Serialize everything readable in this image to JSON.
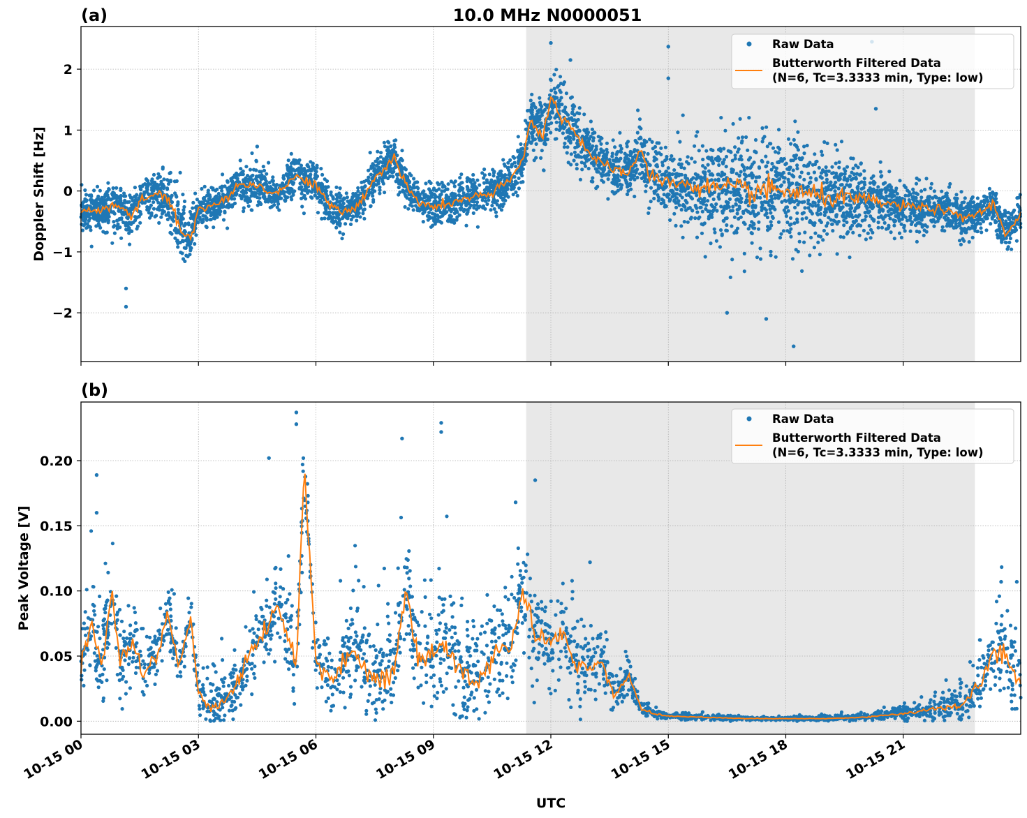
{
  "figure": {
    "title": "10.0 MHz N0000051",
    "xlabel": "UTC",
    "colors": {
      "raw": "#1f77b4",
      "filtered": "#ff7f0e",
      "shade": "#e8e8e8",
      "grid": "#b0b0b0"
    }
  },
  "chart_data": [
    {
      "type": "scatter",
      "panel_label": "(a)",
      "title": "10.0 MHz N0000051",
      "xlabel": "",
      "ylabel": "Doppler Shift [Hz]",
      "xlim_hours": [
        0,
        24
      ],
      "ylim": [
        -2.8,
        2.7
      ],
      "yticks": [
        -2,
        -1,
        0,
        1,
        2
      ],
      "ytick_labels": [
        "−2",
        "−1",
        "0",
        "1",
        "2"
      ],
      "grid": true,
      "legend_position": "top-right",
      "legend": [
        "Raw Data",
        "Butterworth Filtered Data\n(N=6, Tc=3.3333 min, Type: low)"
      ],
      "legend_lines": [
        "Raw Data",
        "Butterworth Filtered Data",
        "(N=6, Tc=3.3333 min, Type: low)"
      ],
      "shaded_region_hours": [
        11.37,
        22.83
      ],
      "series": [
        {
          "name": "Butterworth Filtered Data",
          "kind": "line",
          "x_hours": [
            0,
            0.5,
            1,
            1.3,
            1.6,
            2,
            2.3,
            2.6,
            2.8,
            3,
            3.3,
            3.6,
            4,
            4.5,
            5,
            5.5,
            6,
            6.3,
            6.6,
            7,
            7.5,
            8,
            8.3,
            8.6,
            9,
            9.5,
            10,
            10.5,
            11,
            11.3,
            11.5,
            11.8,
            12,
            12.3,
            12.6,
            13,
            13.5,
            14,
            14.3,
            14.5,
            15,
            16,
            17,
            18,
            19,
            20,
            21,
            22,
            22.5,
            23,
            23.3,
            23.6,
            24
          ],
          "y": [
            -0.35,
            -0.3,
            -0.25,
            -0.45,
            -0.1,
            -0.05,
            -0.2,
            -0.7,
            -0.75,
            -0.3,
            -0.25,
            -0.2,
            0.1,
            0.1,
            -0.05,
            0.25,
            0.1,
            -0.2,
            -0.35,
            -0.3,
            0.2,
            0.55,
            0.1,
            -0.2,
            -0.25,
            -0.2,
            -0.1,
            -0.05,
            0.2,
            0.55,
            1.2,
            0.9,
            1.5,
            1.2,
            1.0,
            0.6,
            0.35,
            0.3,
            0.7,
            0.25,
            0.15,
            0.05,
            0.0,
            0.0,
            -0.1,
            -0.15,
            -0.25,
            -0.3,
            -0.45,
            -0.35,
            -0.2,
            -0.7,
            -0.4
          ]
        },
        {
          "name": "Raw Data",
          "kind": "scatter",
          "spread_hours": [
            0,
            2,
            2.6,
            3,
            6,
            8,
            10,
            11.3,
            11.8,
            12.5,
            14,
            15,
            16,
            17,
            18,
            19,
            20,
            21,
            22,
            23,
            24
          ],
          "spread_hz": [
            0.3,
            0.35,
            0.55,
            0.3,
            0.3,
            0.3,
            0.3,
            0.35,
            0.45,
            0.45,
            0.35,
            0.45,
            0.7,
            0.85,
            0.85,
            0.7,
            0.5,
            0.35,
            0.3,
            0.3,
            0.3
          ],
          "notable_points": [
            [
              1.15,
              -1.9
            ],
            [
              1.15,
              -1.6
            ],
            [
              4.5,
              0.73
            ],
            [
              12.0,
              2.43
            ],
            [
              12.5,
              2.15
            ],
            [
              15.0,
              1.85
            ],
            [
              15.0,
              2.37
            ],
            [
              16.5,
              -2.0
            ],
            [
              17.5,
              -2.1
            ],
            [
              18.2,
              -2.55
            ],
            [
              20.2,
              2.45
            ],
            [
              20.3,
              1.35
            ]
          ]
        }
      ]
    },
    {
      "type": "scatter",
      "panel_label": "(b)",
      "title": "",
      "xlabel": "UTC",
      "ylabel": "Peak Voltage [V]",
      "xlim_hours": [
        0,
        24
      ],
      "ylim": [
        -0.01,
        0.245
      ],
      "yticks": [
        0.0,
        0.05,
        0.1,
        0.15,
        0.2
      ],
      "ytick_labels": [
        "0.00",
        "0.05",
        "0.10",
        "0.15",
        "0.20"
      ],
      "xticks_hours": [
        0,
        3,
        6,
        9,
        12,
        15,
        18,
        21
      ],
      "xtick_labels": [
        "10-15 00",
        "10-15 03",
        "10-15 06",
        "10-15 09",
        "10-15 12",
        "10-15 15",
        "10-15 18",
        "10-15 21"
      ],
      "grid": true,
      "legend_position": "top-right",
      "legend": [
        "Raw Data",
        "Butterworth Filtered Data\n(N=6, Tc=3.3333 min, Type: low)"
      ],
      "legend_lines": [
        "Raw Data",
        "Butterworth Filtered Data",
        "(N=6, Tc=3.3333 min, Type: low)"
      ],
      "shaded_region_hours": [
        11.37,
        22.83
      ],
      "series": [
        {
          "name": "Butterworth Filtered Data",
          "kind": "line",
          "x_hours": [
            0,
            0.3,
            0.5,
            0.8,
            1,
            1.3,
            1.6,
            2,
            2.2,
            2.5,
            2.8,
            3,
            3.3,
            3.6,
            4,
            4.3,
            4.8,
            5,
            5.3,
            5.5,
            5.7,
            6,
            6.3,
            6.6,
            7,
            7.5,
            8,
            8.3,
            8.6,
            9,
            9.3,
            9.6,
            10,
            10.3,
            10.6,
            11,
            11.3,
            11.6,
            12,
            12.3,
            12.6,
            13,
            13.3,
            13.6,
            14,
            14.3,
            14.6,
            15,
            16,
            17,
            18,
            19,
            20,
            21,
            22,
            22.5,
            23,
            23.3,
            23.6,
            24
          ],
          "y": [
            0.045,
            0.075,
            0.04,
            0.095,
            0.045,
            0.06,
            0.035,
            0.055,
            0.085,
            0.04,
            0.08,
            0.02,
            0.01,
            0.015,
            0.03,
            0.05,
            0.075,
            0.09,
            0.065,
            0.04,
            0.2,
            0.045,
            0.035,
            0.04,
            0.055,
            0.03,
            0.04,
            0.1,
            0.045,
            0.05,
            0.06,
            0.04,
            0.035,
            0.03,
            0.055,
            0.06,
            0.1,
            0.065,
            0.06,
            0.07,
            0.045,
            0.04,
            0.045,
            0.02,
            0.035,
            0.01,
            0.006,
            0.004,
            0.003,
            0.002,
            0.002,
            0.002,
            0.003,
            0.006,
            0.01,
            0.012,
            0.03,
            0.055,
            0.05,
            0.025
          ]
        },
        {
          "name": "Raw Data",
          "kind": "scatter",
          "spread_hours": [
            0,
            3,
            3.5,
            6,
            9,
            11,
            12,
            13,
            14,
            14.5,
            15,
            18,
            20,
            21,
            22,
            22.8,
            23.5,
            24
          ],
          "spread_v": [
            0.035,
            0.012,
            0.02,
            0.03,
            0.035,
            0.035,
            0.035,
            0.025,
            0.012,
            0.004,
            0.002,
            0.001,
            0.002,
            0.005,
            0.008,
            0.015,
            0.03,
            0.03
          ],
          "notable_points": [
            [
              0.4,
              0.189
            ],
            [
              0.4,
              0.16
            ],
            [
              4.8,
              0.202
            ],
            [
              5.5,
              0.237
            ],
            [
              5.5,
              0.228
            ],
            [
              8.2,
              0.217
            ],
            [
              9.2,
              0.229
            ],
            [
              9.2,
              0.222
            ],
            [
              11.1,
              0.168
            ],
            [
              11.6,
              0.185
            ],
            [
              13.0,
              0.122
            ],
            [
              23.5,
              0.107
            ],
            [
              23.9,
              0.107
            ]
          ]
        }
      ]
    }
  ]
}
